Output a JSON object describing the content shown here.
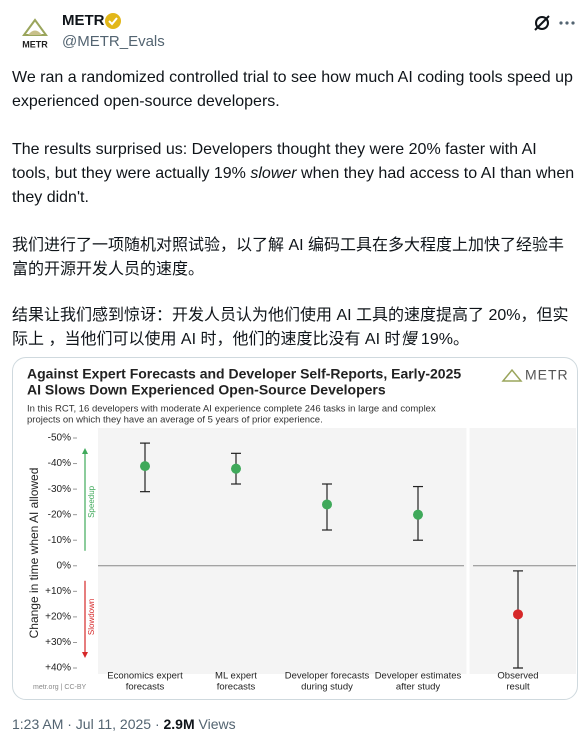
{
  "header": {
    "name": "METR",
    "handle": "@METR_Evals",
    "avatar_text": "METR"
  },
  "post": {
    "paragraphs": [
      [
        {
          "text": "We ran a randomized controlled trial to see how much AI coding tools speed up experienced open-source developers."
        }
      ],
      [
        {
          "text": "The results surprised us: Developers thought they were 20% faster with AI tools, but they were actually 19% "
        },
        {
          "text": "slower",
          "italic": true
        },
        {
          "text": " when they had access to AI than when they didn't."
        }
      ],
      [
        {
          "text": "我们进行了一项随机对照试验，以了解 AI 编码工具在多大程度上加快了经验丰富的开源开发人员的速度。"
        }
      ],
      [
        {
          "text": "结果让我们感到惊讶：开发人员认为他们使用 AI 工具的速度提高了 20%，但实际上 ，当他们可以使用 AI 时，他们的速度比没有 AI 时"
        },
        {
          "text": "慢",
          "italic": true
        },
        {
          "text": " 19%。"
        }
      ]
    ]
  },
  "chart_data": {
    "type": "errorbar",
    "title": [
      "Against Expert Forecasts and Developer Self-Reports, Early-2025",
      "AI Slows Down Experienced Open-Source Developers"
    ],
    "subtitle": [
      "In this RCT, 16 developers with moderate AI experience complete 246 tasks in large and complex",
      "projects on which they have an average of 5 years of prior experience."
    ],
    "logo": "METR",
    "y_label": "Change in time when AI allowed",
    "speedup_label": "Speedup",
    "slowdown_label": "Slowdown",
    "footer": "metr.org | CC-BY",
    "categories": [
      [
        "Economics expert",
        "forecasts"
      ],
      [
        "ML expert",
        "forecasts"
      ],
      [
        "Developer forecasts",
        "during study"
      ],
      [
        "Developer estimates",
        "after study"
      ],
      [
        "Observed",
        "result"
      ]
    ],
    "values": [
      -39,
      -38,
      -24,
      -20,
      19
    ],
    "ci_low": [
      -48,
      -44,
      -32,
      -31,
      2
    ],
    "ci_high": [
      -29,
      -32,
      -14,
      -10,
      40
    ],
    "colors": [
      "#3fa95a",
      "#3fa95a",
      "#3fa95a",
      "#3fa95a",
      "#d62728"
    ],
    "ylim": [
      -50,
      40
    ],
    "invert_y": true,
    "yticks": [
      {
        "value": -50,
        "label": "-50%"
      },
      {
        "value": -40,
        "label": "-40%"
      },
      {
        "value": -30,
        "label": "-30%"
      },
      {
        "value": -20,
        "label": "-20%"
      },
      {
        "value": -10,
        "label": "-10%"
      },
      {
        "value": 0,
        "label": "0%"
      },
      {
        "value": 10,
        "label": "+10%"
      },
      {
        "value": 20,
        "label": "+20%"
      },
      {
        "value": 30,
        "label": "+30%"
      },
      {
        "value": 40,
        "label": "+40%"
      }
    ]
  },
  "footer": {
    "timestamp": "1:23 AM · Jul 11, 2025 ·",
    "views": "2.9M",
    "views_label": "Views"
  }
}
